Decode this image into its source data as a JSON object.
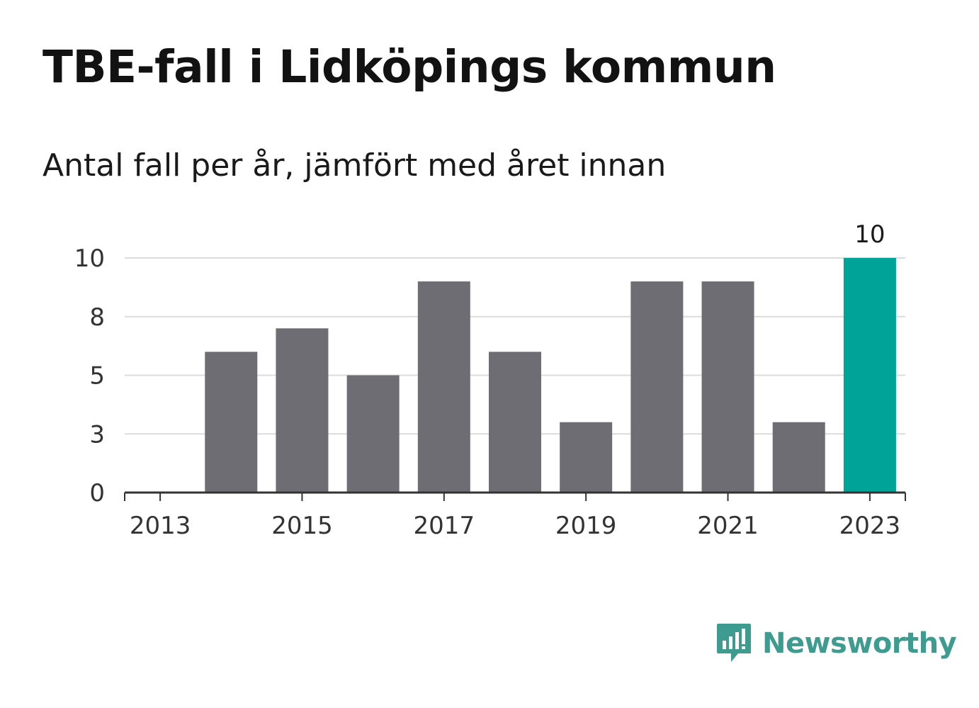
{
  "header": {
    "title": "TBE-fall i Lidköpings kommun",
    "subtitle": "Antal fall per år, jämfört med året innan"
  },
  "brand": {
    "name": "Newsworthy",
    "color": "#3e9b90",
    "icon": "newsworthy-logo-icon"
  },
  "chart_data": {
    "type": "bar",
    "categories": [
      "2013",
      "2014",
      "2015",
      "2016",
      "2017",
      "2018",
      "2019",
      "2020",
      "2021",
      "2022",
      "2023"
    ],
    "values": [
      0,
      6,
      7,
      5,
      9,
      6,
      3,
      9,
      9,
      3,
      10
    ],
    "x_tick_labels": [
      "2013",
      "2015",
      "2017",
      "2019",
      "2021",
      "2023"
    ],
    "y_ticks": [
      0,
      2.5,
      5,
      7.5,
      10
    ],
    "y_tick_labels": [
      "0",
      "3",
      "5",
      "8",
      "10"
    ],
    "ylim": [
      0,
      10
    ],
    "grid": true,
    "highlight": {
      "category": "2023",
      "label": "10"
    },
    "colors": {
      "bar": "#6e6d73",
      "highlight": "#00a398",
      "grid": "#dcdcdc",
      "axis": "#333333"
    },
    "xlabel": "",
    "ylabel": ""
  }
}
